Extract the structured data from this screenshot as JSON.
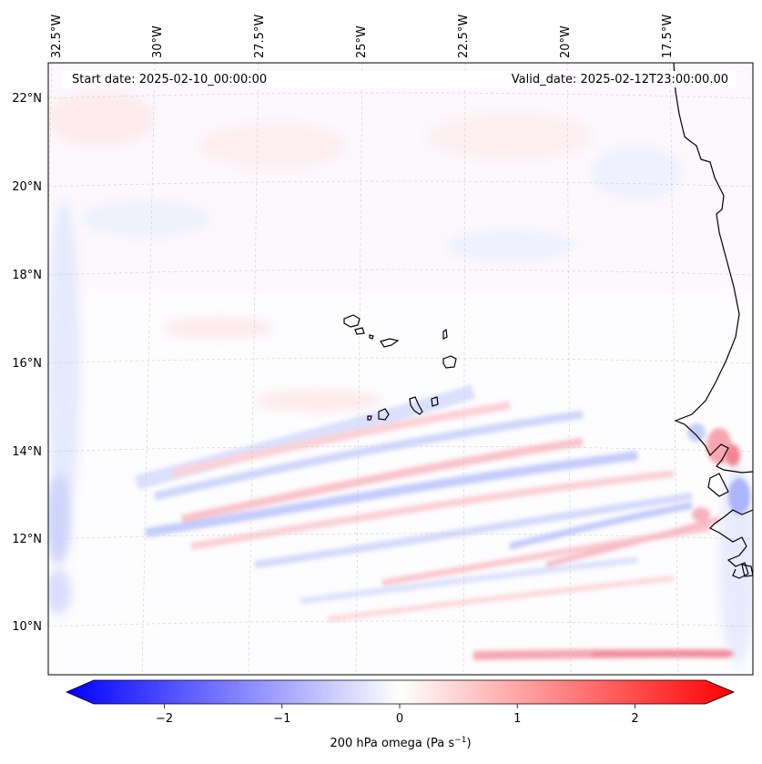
{
  "header": {
    "start_date": "Start date: 2025-02-10_00:00:00",
    "valid_date": "Valid_date: 2025-02-12T23:00:00.00"
  },
  "longitude_labels": [
    "32.5°W",
    "30°W",
    "27.5°W",
    "25°W",
    "22.5°W",
    "20°W",
    "17.5°W"
  ],
  "latitude_labels": [
    "22°N",
    "20°N",
    "18°N",
    "16°N",
    "14°N",
    "12°N",
    "10°N"
  ],
  "colorbar": {
    "label_main": "200 hPa omega (Pa s",
    "label_sup": "−1",
    "label_close": ")",
    "ticks": [
      "−2",
      "−1",
      "0",
      "1",
      "2"
    ],
    "tick_values": [
      -2,
      -1,
      0,
      1,
      2
    ],
    "range": [
      -2.6,
      2.6
    ],
    "cmap": "bwr",
    "extend": "both"
  },
  "colors": {
    "low": "#0000ff",
    "mid": "#ffffff",
    "high": "#ff0000",
    "coast": "#000000",
    "grid": "#c8c8c8"
  }
}
